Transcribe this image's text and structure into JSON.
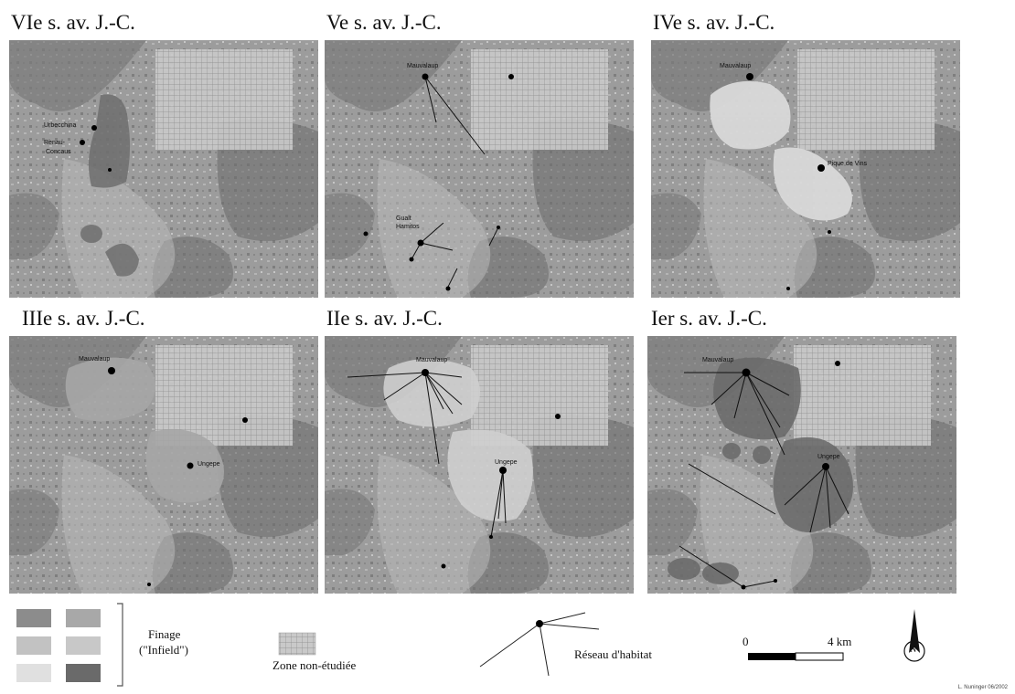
{
  "panels": [
    {
      "title": "VIe s. av. J.-C.",
      "labels": [
        "Urbecchina",
        "Renau-",
        "Concaus"
      ]
    },
    {
      "title": "Ve s. av. J.-C.",
      "labels": [
        "Mauvalaup",
        "Gualt",
        "Hamitos"
      ]
    },
    {
      "title": "IVe s. av. J.-C.",
      "labels": [
        "Mauvalaup",
        "Pique de Vins"
      ]
    },
    {
      "title": "IIIe s. av. J.-C.",
      "labels": [
        "Mauvalaup",
        "Ungepe"
      ]
    },
    {
      "title": "IIe s. av. J.-C.",
      "labels": [
        "Mauvalaup",
        "Ungepe"
      ]
    },
    {
      "title": "Ier s. av. J.-C.",
      "labels": [
        "Mauvalaup",
        "Ungepe"
      ]
    }
  ],
  "legend": {
    "finage_label": "Finage",
    "infield_label": "(\"Infield\")",
    "zone_label": "Zone non-étudiée",
    "reseau_label": "Réseau d'habitat",
    "scale_start": "0",
    "scale_end": "4 km",
    "north_label": "N",
    "credit": "L. Nuninger 06/2002"
  },
  "colors": {
    "finage_swatches": [
      "#8c8c8c",
      "#a8a8a8",
      "#c2c2c2",
      "#c8c8c8",
      "#e0e0e0",
      "#6a6a6a"
    ]
  }
}
